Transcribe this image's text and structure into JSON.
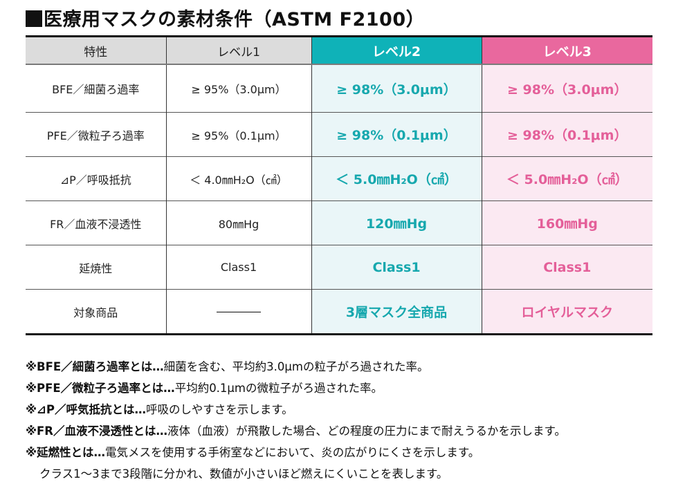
{
  "title": {
    "marker": "■",
    "text": "医療用マスクの素材条件（ASTM F2100）"
  },
  "colors": {
    "level2_header": "#0fb2b8",
    "level2_cell_bg": "#eaf6f8",
    "level2_text": "#17a8ae",
    "level3_header": "#e9689e",
    "level3_cell_bg": "#fbe9f2",
    "level3_text": "#e45f99",
    "header_gray": "#dcdcdc"
  },
  "table": {
    "headers": [
      "特性",
      "レベル1",
      "レベル2",
      "レベル3"
    ],
    "rows": [
      {
        "property": "BFE／細菌ろ過率",
        "level1": "≥ 95%（3.0μm）",
        "level2": "≥ 98%（3.0μm）",
        "level3": "≥ 98%（3.0μm）"
      },
      {
        "property": "PFE／微粒子ろ過率",
        "level1": "≥ 95%（0.1μm）",
        "level2": "≥ 98%（0.1μm）",
        "level3": "≥ 98%（0.1μm）"
      },
      {
        "property": "⊿P／呼吸抵抗",
        "level1": "＜ 4.0㎜H₂O（㎠）",
        "level2": "＜ 5.0㎜H₂O（㎠）",
        "level3": "＜ 5.0㎜H₂O（㎠）"
      },
      {
        "property": "FR／血液不浸透性",
        "level1": "80㎜Hg",
        "level2": "120㎜Hg",
        "level3": "160㎜Hg"
      },
      {
        "property": "延焼性",
        "level1": "Class1",
        "level2": "Class1",
        "level3": "Class1"
      },
      {
        "property": "対象商品",
        "level1": "――――",
        "level2": "3層マスク全商品",
        "level3": "ロイヤルマスク"
      }
    ]
  },
  "notes": [
    {
      "term": "※BFE／細菌ろ過率とは…",
      "desc": "細菌を含む、平均約3.0μmの粒子がろ過された率。"
    },
    {
      "term": "※PFE／微粒子ろ過率とは…",
      "desc": "平均約0.1μmの微粒子がろ過された率。"
    },
    {
      "term": "※⊿P／呼気抵抗とは…",
      "desc": "呼吸のしやすさを示します。"
    },
    {
      "term": "※FR／血液不浸透性とは…",
      "desc": "液体（血液）が飛散した場合、どの程度の圧力にまで耐えうるかを示します。"
    },
    {
      "term": "※延燃性とは…",
      "desc": "電気メスを使用する手術室などにおいて、炎の広がりにくさを示します。"
    }
  ],
  "notes_continuation": "クラス1〜3まで3段階に分かれ、数値が小さいほど燃えにくいことを表します。"
}
